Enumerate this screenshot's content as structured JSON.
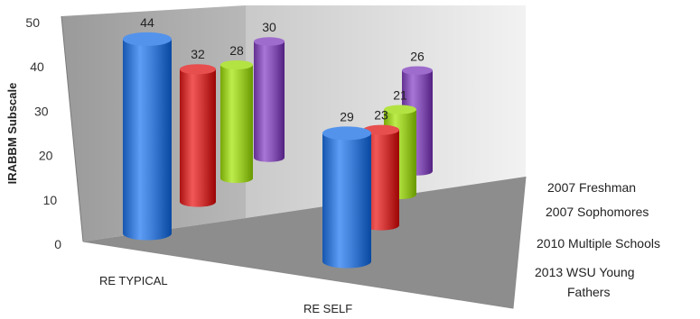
{
  "chart_data": {
    "type": "bar",
    "style": "3d-cylinder",
    "ylabel": "IRABBM Subscale",
    "ylim": [
      0,
      50
    ],
    "yticks": [
      0,
      10,
      20,
      30,
      40,
      50
    ],
    "categories": [
      "RE TYPICAL",
      "RE SELF"
    ],
    "series": [
      {
        "name": "2013 WSU Young Fathers",
        "color": "#3f7fd8",
        "values": [
          44,
          29
        ]
      },
      {
        "name": "2010 Multiple Schools",
        "color": "#d33a3a",
        "values": [
          32,
          23
        ]
      },
      {
        "name": "2007 Sophomores",
        "color": "#9fcf2f",
        "values": [
          28,
          21
        ]
      },
      {
        "name": "2007 Freshman",
        "color": "#8a58b8",
        "values": [
          30,
          26
        ]
      }
    ],
    "grid": false,
    "legend": "none"
  }
}
